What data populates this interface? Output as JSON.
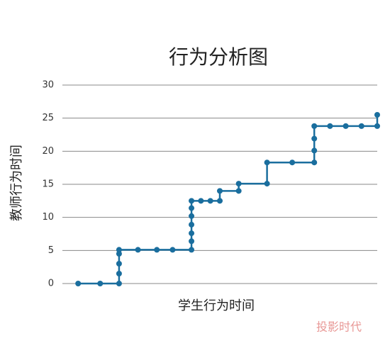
{
  "chart_data": {
    "type": "line",
    "title": "行为分析图",
    "x_label": "学生行为时间",
    "y_label": "教师行为时间",
    "x": [
      5,
      12,
      18,
      18,
      18,
      18,
      18,
      24,
      30,
      35,
      41,
      41,
      41,
      41,
      41,
      41,
      41,
      44,
      47,
      50,
      50,
      56,
      56,
      65,
      65,
      73,
      80,
      80,
      80,
      80,
      85,
      90,
      95,
      100,
      100
    ],
    "series": [
      {
        "name": "行为分析",
        "color": "#1a6e9e",
        "values": [
          0,
          0,
          0,
          1.5,
          3,
          4.5,
          5.1,
          5.1,
          5.1,
          5.1,
          5.1,
          6.4,
          7.6,
          8.9,
          10.2,
          11.4,
          12.5,
          12.5,
          12.5,
          12.5,
          14,
          14,
          15.1,
          15.1,
          18.3,
          18.3,
          18.3,
          20.1,
          21.9,
          23.8,
          23.8,
          23.8,
          23.8,
          23.8,
          25.5
        ]
      }
    ],
    "xlim": [
      0,
      100
    ],
    "ylim": [
      0,
      30
    ],
    "yticks": [
      0,
      5,
      10,
      15,
      20,
      25,
      30
    ],
    "grid": true,
    "watermark": "投影时代"
  }
}
